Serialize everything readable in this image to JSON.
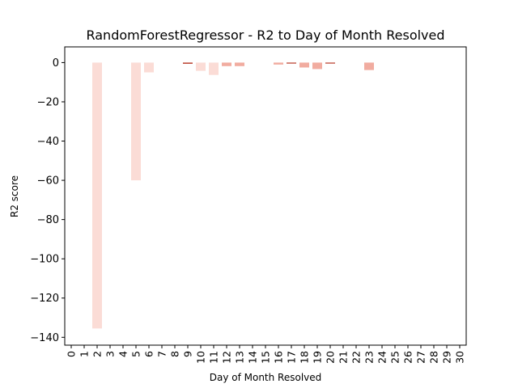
{
  "chart_data": {
    "type": "bar",
    "title": "RandomForestRegressor - R2 to Day of Month Resolved",
    "xlabel": "Day of Month Resolved",
    "ylabel": "R2 score",
    "categories": [
      "0",
      "1",
      "2",
      "3",
      "4",
      "5",
      "6",
      "7",
      "8",
      "9",
      "10",
      "11",
      "12",
      "13",
      "14",
      "15",
      "16",
      "17",
      "18",
      "19",
      "20",
      "21",
      "22",
      "23",
      "24",
      "25",
      "26",
      "27",
      "28",
      "29",
      "30"
    ],
    "values": [
      null,
      null,
      -135.5,
      null,
      null,
      -60,
      -5,
      null,
      null,
      -0.6,
      -4.2,
      -6.3,
      -1.8,
      -1.8,
      null,
      null,
      -1.0,
      -0.5,
      -2.5,
      -3.3,
      -0.5,
      null,
      null,
      -3.8,
      null,
      null,
      null,
      null,
      null,
      null,
      null
    ],
    "ylim": [
      -144,
      8
    ],
    "yticks": [
      0,
      -20,
      -40,
      -60,
      -80,
      -100,
      -120,
      -140
    ],
    "ytick_labels": [
      "0",
      "−20",
      "−40",
      "−60",
      "−80",
      "−100",
      "−120",
      "−140"
    ],
    "grid": false,
    "legend": "none",
    "bar_colors": {
      "light": "#fbdcd6",
      "mid": "#f1aca0",
      "dark": "#b73a28"
    }
  }
}
